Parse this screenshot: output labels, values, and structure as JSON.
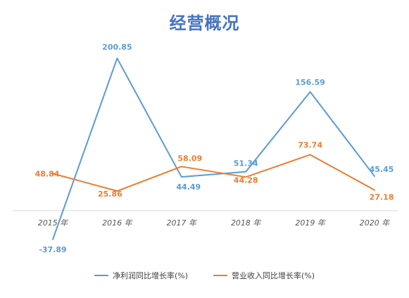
{
  "chart_data": {
    "type": "line",
    "title": "经营概况",
    "categories": [
      "2015 年",
      "2016 年",
      "2017 年",
      "2018 年",
      "2019 年",
      "2020 年"
    ],
    "series": [
      {
        "name": "净利润同比增长率(%)",
        "color": "#5b9bd5",
        "values": [
          -37.89,
          200.85,
          44.49,
          51.34,
          156.59,
          45.45
        ],
        "labels": [
          "-37.89",
          "200.85",
          "44.49",
          "51.34",
          "156.59",
          "45.45"
        ]
      },
      {
        "name": "营业收入同比增长率(%)",
        "color": "#ed7d31",
        "values": [
          48.84,
          25.86,
          58.09,
          44.28,
          73.74,
          27.18
        ],
        "labels": [
          "48.84",
          "25.86",
          "58.09",
          "44.28",
          "73.74",
          "27.18"
        ]
      }
    ],
    "ylim": [
      -50,
      225
    ],
    "grid": false,
    "legend": "bottom"
  }
}
